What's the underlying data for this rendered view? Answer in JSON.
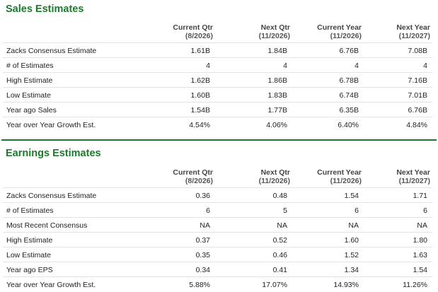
{
  "sales": {
    "title": "Sales Estimates",
    "columns": [
      {
        "label": "Current Qtr",
        "period": "(8/2026)"
      },
      {
        "label": "Next Qtr",
        "period": "(11/2026)"
      },
      {
        "label": "Current Year",
        "period": "(11/2026)"
      },
      {
        "label": "Next Year",
        "period": "(11/2027)"
      }
    ],
    "rows": [
      {
        "label": "Zacks Consensus Estimate",
        "values": [
          "1.61B",
          "1.84B",
          "6.76B",
          "7.08B"
        ]
      },
      {
        "label": "# of Estimates",
        "values": [
          "4",
          "4",
          "4",
          "4"
        ]
      },
      {
        "label": "High Estimate",
        "values": [
          "1.62B",
          "1.86B",
          "6.78B",
          "7.16B"
        ]
      },
      {
        "label": "Low Estimate",
        "values": [
          "1.60B",
          "1.83B",
          "6.74B",
          "7.01B"
        ]
      },
      {
        "label": "Year ago Sales",
        "values": [
          "1.54B",
          "1.77B",
          "6.35B",
          "6.76B"
        ]
      },
      {
        "label": "Year over Year Growth Est.",
        "values": [
          "4.54%",
          "4.06%",
          "6.40%",
          "4.84%"
        ]
      }
    ]
  },
  "earnings": {
    "title": "Earnings Estimates",
    "columns": [
      {
        "label": "Current Qtr",
        "period": "(8/2026)"
      },
      {
        "label": "Next Qtr",
        "period": "(11/2026)"
      },
      {
        "label": "Current Year",
        "period": "(11/2026)"
      },
      {
        "label": "Next Year",
        "period": "(11/2027)"
      }
    ],
    "rows": [
      {
        "label": "Zacks Consensus Estimate",
        "values": [
          "0.36",
          "0.48",
          "1.54",
          "1.71"
        ]
      },
      {
        "label": "# of Estimates",
        "values": [
          "6",
          "5",
          "6",
          "6"
        ]
      },
      {
        "label": "Most Recent Consensus",
        "values": [
          "NA",
          "NA",
          "NA",
          "NA"
        ]
      },
      {
        "label": "High Estimate",
        "values": [
          "0.37",
          "0.52",
          "1.60",
          "1.80"
        ]
      },
      {
        "label": "Low Estimate",
        "values": [
          "0.35",
          "0.46",
          "1.52",
          "1.63"
        ]
      },
      {
        "label": "Year ago EPS",
        "values": [
          "0.34",
          "0.41",
          "1.34",
          "1.54"
        ]
      },
      {
        "label": "Year over Year Growth Est.",
        "values": [
          "5.88%",
          "17.07%",
          "14.93%",
          "11.26%"
        ]
      }
    ]
  },
  "colors": {
    "accent": "#1d7a2c",
    "row_border": "#e2e2e2"
  }
}
